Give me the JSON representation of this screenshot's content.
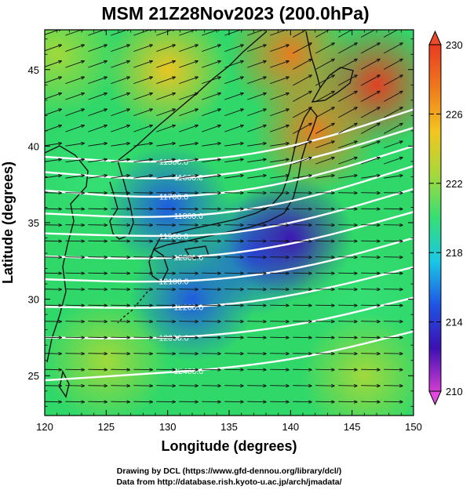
{
  "chart_data": {
    "type": "heatmap",
    "title": "MSM 21Z28Nov2023 (200.0hPa)",
    "xlabel": "Longitude (degrees)",
    "ylabel": "Latitude  (degrees)",
    "xlim": [
      120,
      150
    ],
    "ylim": [
      22.4,
      47.6
    ],
    "xticks": [
      "120",
      "125",
      "130",
      "135",
      "140",
      "145",
      "150"
    ],
    "yticks": [
      "25",
      "30",
      "35",
      "40",
      "45"
    ],
    "colorbar": {
      "range": [
        210,
        230
      ],
      "ticks": [
        "210",
        "214",
        "218",
        "222",
        "226",
        "230"
      ],
      "colors": [
        "#d23cd2",
        "#3c10b4",
        "#1f55e6",
        "#19c8e6",
        "#35df74",
        "#a6d93a",
        "#f3c51f",
        "#f07a1c",
        "#e93a22"
      ]
    },
    "field_samples": [
      {
        "lon": 121,
        "lat": 46,
        "value": 223
      },
      {
        "lon": 130,
        "lat": 45,
        "value": 224
      },
      {
        "lon": 140,
        "lat": 46,
        "value": 227
      },
      {
        "lon": 147,
        "lat": 44,
        "value": 229
      },
      {
        "lon": 142,
        "lat": 41,
        "value": 227
      },
      {
        "lon": 124,
        "lat": 38,
        "value": 219
      },
      {
        "lon": 130,
        "lat": 36,
        "value": 216
      },
      {
        "lon": 137,
        "lat": 33,
        "value": 214
      },
      {
        "lon": 140,
        "lat": 34,
        "value": 213
      },
      {
        "lon": 132,
        "lat": 30,
        "value": 215
      },
      {
        "lon": 146,
        "lat": 30,
        "value": 220
      },
      {
        "lon": 125,
        "lat": 26,
        "value": 222
      },
      {
        "lon": 146,
        "lat": 25,
        "value": 223
      }
    ],
    "contours": [
      {
        "label": "11500.0",
        "points": [
          [
            120,
            39.3
          ],
          [
            128,
            38.9
          ],
          [
            135,
            39.2
          ],
          [
            142,
            40.3
          ],
          [
            150,
            42.4
          ]
        ]
      },
      {
        "label": "11600.0",
        "points": [
          [
            120,
            38.3
          ],
          [
            128,
            37.8
          ],
          [
            135,
            38.1
          ],
          [
            142,
            39.2
          ],
          [
            150,
            41.2
          ]
        ]
      },
      {
        "label": "11700.0",
        "points": [
          [
            120,
            37.1
          ],
          [
            128,
            36.6
          ],
          [
            135,
            36.9
          ],
          [
            142,
            38.0
          ],
          [
            150,
            40.0
          ]
        ]
      },
      {
        "label": "11800.0",
        "points": [
          [
            120,
            35.6
          ],
          [
            128,
            35.3
          ],
          [
            135,
            35.6
          ],
          [
            142,
            36.7
          ],
          [
            150,
            38.7
          ]
        ]
      },
      {
        "label": "11900.0",
        "points": [
          [
            120,
            34.3
          ],
          [
            128,
            34.1
          ],
          [
            135,
            34.2
          ],
          [
            142,
            35.3
          ],
          [
            150,
            37.2
          ]
        ]
      },
      {
        "label": "12000.0",
        "points": [
          [
            120,
            32.8
          ],
          [
            128,
            32.6
          ],
          [
            135,
            32.9
          ],
          [
            142,
            33.9
          ],
          [
            150,
            35.7
          ]
        ]
      },
      {
        "label": "12100.0",
        "points": [
          [
            120,
            31.3
          ],
          [
            128,
            31.1
          ],
          [
            135,
            31.3
          ],
          [
            142,
            32.2
          ],
          [
            150,
            34.0
          ]
        ]
      },
      {
        "label": "12200.0",
        "points": [
          [
            120,
            29.5
          ],
          [
            128,
            29.4
          ],
          [
            135,
            29.6
          ],
          [
            142,
            30.5
          ],
          [
            150,
            32.1
          ]
        ]
      },
      {
        "label": "12300.0",
        "points": [
          [
            120,
            27.5
          ],
          [
            128,
            27.4
          ],
          [
            135,
            27.7
          ],
          [
            142,
            28.5
          ],
          [
            150,
            30.1
          ]
        ]
      },
      {
        "label": "12400.0",
        "points": [
          [
            120,
            24.7
          ],
          [
            128,
            25.1
          ],
          [
            135,
            25.5
          ],
          [
            142,
            26.3
          ],
          [
            150,
            27.9
          ]
        ]
      }
    ],
    "vectors": "wind arrows, predominantly westerly (west to east)"
  },
  "credits": {
    "line1": "Drawing by DCL (https://www.gfd-dennou.org/library/dcl/)",
    "line2": "Data from http://database.rish.kyoto-u.ac.jp/arch/jmadata/"
  }
}
